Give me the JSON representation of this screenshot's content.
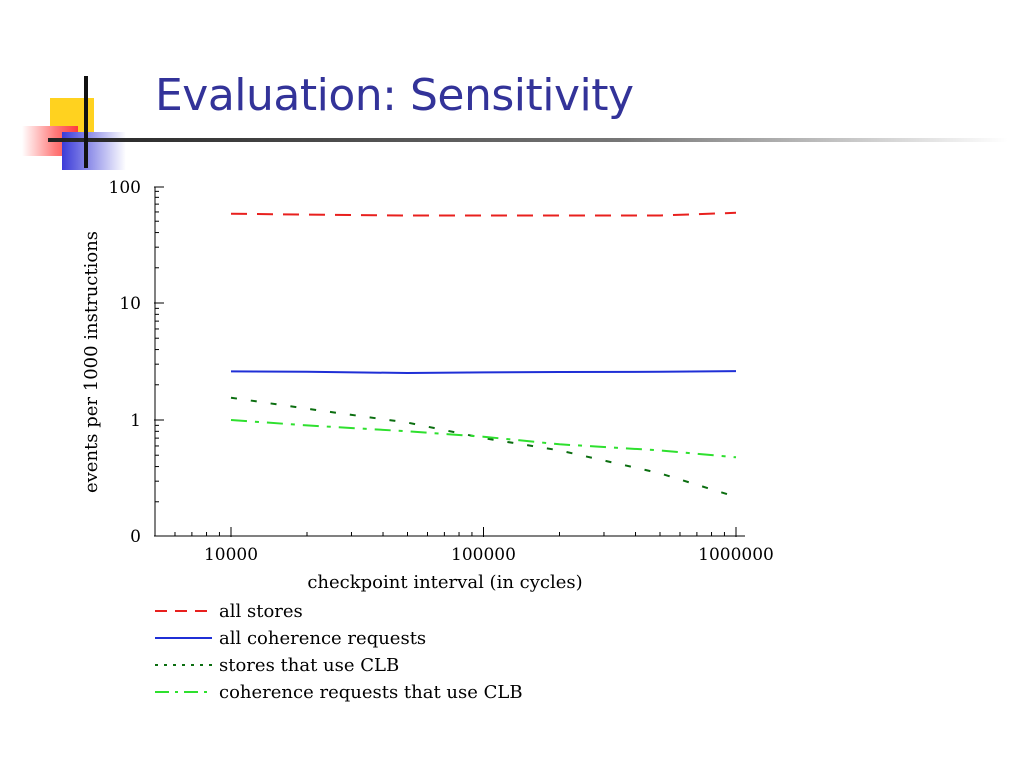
{
  "slide": {
    "title": "Evaluation: Sensitivity"
  },
  "chart_data": {
    "type": "line",
    "xlabel": "checkpoint interval (in cycles)",
    "ylabel": "events per 1000 instructions",
    "x_scale": "log",
    "y_scale": "log",
    "xlim": [
      5000,
      1200000
    ],
    "y_ticks": [
      "0",
      "1",
      "10",
      "100"
    ],
    "x_ticks": [
      10000,
      100000,
      1000000
    ],
    "x_tick_labels": [
      "10000",
      "100000",
      "1000000"
    ],
    "x": [
      10000,
      20000,
      50000,
      100000,
      200000,
      500000,
      1000000
    ],
    "legend_position": "bottom",
    "series": [
      {
        "name": "all stores",
        "values": [
          58,
          57,
          56,
          56,
          56,
          56,
          59
        ],
        "color": "#e8201e",
        "dash": "long-dash"
      },
      {
        "name": "all coherence requests",
        "values": [
          2.6,
          2.58,
          2.52,
          2.55,
          2.57,
          2.58,
          2.62
        ],
        "color": "#1f2fd6",
        "dash": "solid"
      },
      {
        "name": "stores that use CLB",
        "values": [
          1.55,
          1.25,
          0.95,
          0.7,
          0.55,
          0.35,
          0.22
        ],
        "color": "#0b6e10",
        "dash": "short-dash"
      },
      {
        "name": "coherence requests that use CLB",
        "values": [
          1.0,
          0.9,
          0.8,
          0.72,
          0.62,
          0.55,
          0.48
        ],
        "color": "#2ee02e",
        "dash": "dash-dot"
      }
    ]
  }
}
